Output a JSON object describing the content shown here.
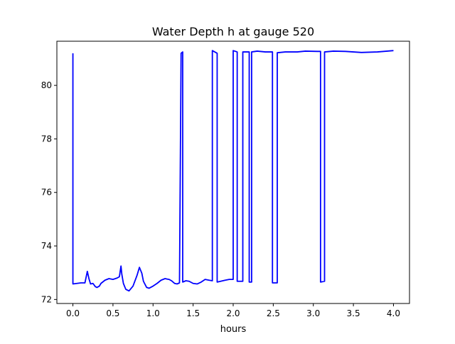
{
  "chart_data": {
    "type": "line",
    "title": "Water Depth h at gauge 520",
    "xlabel": "hours",
    "ylabel": "",
    "xlim": [
      -0.2,
      4.2
    ],
    "ylim": [
      71.85,
      81.65
    ],
    "xticks": [
      0.0,
      0.5,
      1.0,
      1.5,
      2.0,
      2.5,
      3.0,
      3.5,
      4.0
    ],
    "xtick_labels": [
      "0.0",
      "0.5",
      "1.0",
      "1.5",
      "2.0",
      "2.5",
      "3.0",
      "3.5",
      "4.0"
    ],
    "yticks": [
      72,
      74,
      76,
      78,
      80
    ],
    "ytick_labels": [
      "72",
      "74",
      "76",
      "78",
      "80"
    ],
    "grid": false,
    "legend": "none",
    "series": [
      {
        "color": "#0000ff",
        "x": [
          0.0,
          0.0,
          0.05,
          0.1,
          0.15,
          0.18,
          0.2,
          0.22,
          0.25,
          0.28,
          0.3,
          0.33,
          0.35,
          0.4,
          0.45,
          0.5,
          0.55,
          0.58,
          0.6,
          0.61,
          0.63,
          0.66,
          0.7,
          0.75,
          0.8,
          0.83,
          0.86,
          0.88,
          0.92,
          0.95,
          1.0,
          1.05,
          1.1,
          1.15,
          1.18,
          1.2,
          1.23,
          1.27,
          1.3,
          1.33,
          1.35,
          1.37,
          1.37,
          1.41,
          1.41,
          1.45,
          1.5,
          1.55,
          1.6,
          1.65,
          1.7,
          1.74,
          1.74,
          1.8,
          1.8,
          1.9,
          1.95,
          2.0,
          2.0,
          2.05,
          2.05,
          2.12,
          2.12,
          2.2,
          2.2,
          2.23,
          2.23,
          2.3,
          2.4,
          2.49,
          2.49,
          2.55,
          2.55,
          2.65,
          2.8,
          2.9,
          3.05,
          3.09,
          3.09,
          3.14,
          3.14,
          3.25,
          3.4,
          3.6,
          3.8,
          4.0
        ],
        "y": [
          81.2,
          72.58,
          72.6,
          72.62,
          72.62,
          73.05,
          72.78,
          72.58,
          72.6,
          72.48,
          72.45,
          72.5,
          72.6,
          72.72,
          72.78,
          72.75,
          72.8,
          72.85,
          73.25,
          72.95,
          72.6,
          72.38,
          72.32,
          72.5,
          72.9,
          73.2,
          72.98,
          72.68,
          72.45,
          72.42,
          72.5,
          72.6,
          72.72,
          72.78,
          72.76,
          72.75,
          72.7,
          72.6,
          72.58,
          72.62,
          81.2,
          81.25,
          72.65,
          72.7,
          72.7,
          72.68,
          72.6,
          72.58,
          72.65,
          72.75,
          72.72,
          72.7,
          81.3,
          81.2,
          72.65,
          72.72,
          72.75,
          72.75,
          81.3,
          81.25,
          72.68,
          72.68,
          81.25,
          81.25,
          72.65,
          72.65,
          81.25,
          81.28,
          81.25,
          81.25,
          72.62,
          72.62,
          81.22,
          81.25,
          81.25,
          81.28,
          81.27,
          81.27,
          72.65,
          72.68,
          81.25,
          81.28,
          81.27,
          81.23,
          81.25,
          81.3
        ]
      }
    ]
  }
}
